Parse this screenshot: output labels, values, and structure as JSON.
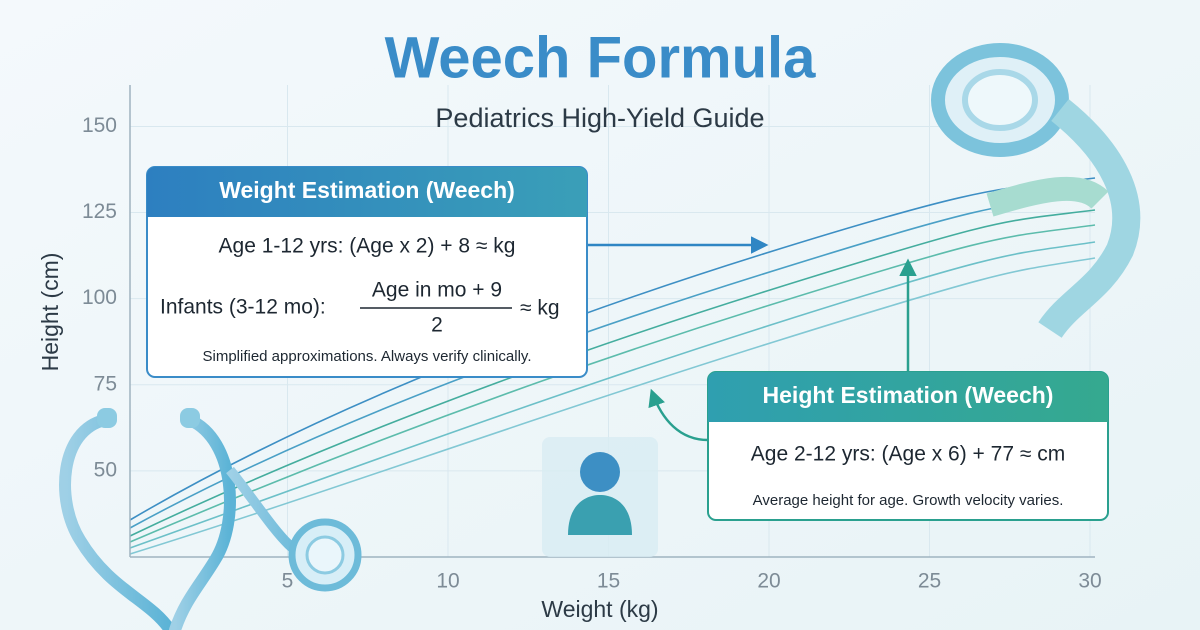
{
  "chart_data": {
    "type": "line",
    "title": "Weech Formula",
    "subtitle": "Pediatrics High-Yield Guide",
    "x_label": "Weight (kg)",
    "y_label": "Height (cm)",
    "xlim": [
      0,
      30
    ],
    "ylim": [
      25,
      160
    ],
    "xticks": [
      5,
      10,
      15,
      20,
      25,
      30
    ],
    "yticks": [
      50,
      75,
      100,
      125,
      150
    ],
    "grid": true,
    "annotations": [
      {
        "title": "Weight Estimation (Weech)",
        "formula": "Age 1-12 yrs: (Age x 2) + 8 ≈ kg",
        "infant_label": "Infants (3-12 mo):",
        "numerator": "Age in mo + 9",
        "denominator": "2",
        "approx": "≈ kg",
        "note": "Simplified approximations. Always verify clinically."
      },
      {
        "title": "Height Estimation (Weech)",
        "formula": "Age 2-12 yrs:  (Age x 6) + 77 ≈ cm",
        "note": "Average height for age. Growth velocity varies."
      }
    ]
  }
}
